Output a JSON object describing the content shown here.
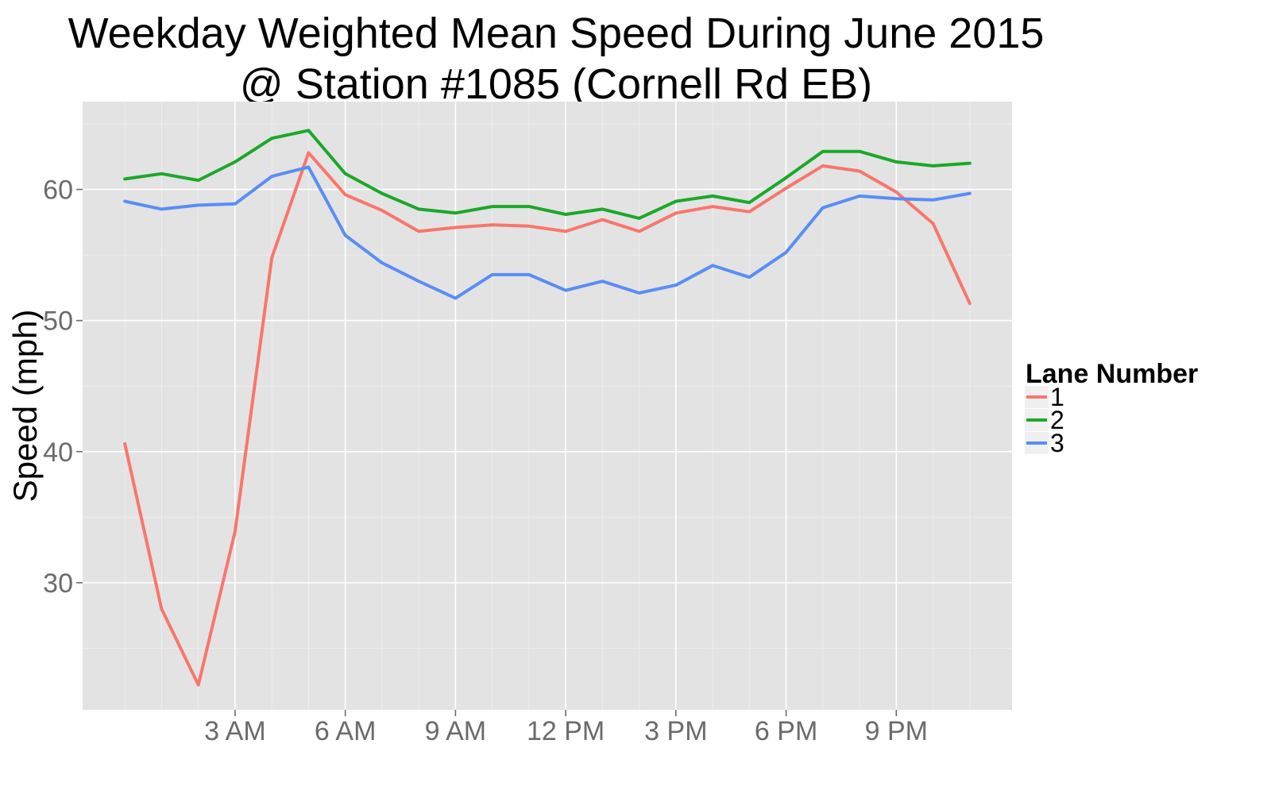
{
  "chart_data": {
    "type": "line",
    "title_lines": [
      "Weekday Weighted Mean Speed During June 2015",
      "@ Station #1085 (Cornell Rd EB)"
    ],
    "xlabel": "",
    "ylabel": "Speed (mph)",
    "x": [
      0,
      1,
      2,
      3,
      4,
      5,
      6,
      7,
      8,
      9,
      10,
      11,
      12,
      13,
      14,
      15,
      16,
      17,
      18,
      19,
      20,
      21,
      22,
      23
    ],
    "xlim": [
      -1.15,
      24.15
    ],
    "ylim": [
      20.3,
      66.7
    ],
    "x_ticks": [
      {
        "value": 3,
        "label": "3 AM"
      },
      {
        "value": 6,
        "label": "6 AM"
      },
      {
        "value": 9,
        "label": "9 AM"
      },
      {
        "value": 12,
        "label": "12 PM"
      },
      {
        "value": 15,
        "label": "3 PM"
      },
      {
        "value": 18,
        "label": "6 PM"
      },
      {
        "value": 21,
        "label": "9 PM"
      }
    ],
    "y_ticks": [
      {
        "value": 30,
        "label": "30"
      },
      {
        "value": 40,
        "label": "40"
      },
      {
        "value": 50,
        "label": "50"
      },
      {
        "value": 60,
        "label": "60"
      }
    ],
    "grid": true,
    "legend": {
      "title": "Lane Number",
      "placement": "right"
    },
    "series": [
      {
        "name": "1",
        "color": "#f8766d",
        "values": [
          40.6,
          28.0,
          22.2,
          33.9,
          54.8,
          62.8,
          59.6,
          58.4,
          56.8,
          57.1,
          57.3,
          57.2,
          56.8,
          57.7,
          56.8,
          58.2,
          58.7,
          58.3,
          60.1,
          61.8,
          61.4,
          59.8,
          57.4,
          51.3
        ]
      },
      {
        "name": "2",
        "color": "#1ba82a",
        "values": [
          60.8,
          61.2,
          60.7,
          62.1,
          63.9,
          64.5,
          61.2,
          59.7,
          58.5,
          58.2,
          58.7,
          58.7,
          58.1,
          58.5,
          57.8,
          59.1,
          59.5,
          59.0,
          60.9,
          62.9,
          62.9,
          62.1,
          61.8,
          62.0
        ]
      },
      {
        "name": "3",
        "color": "#5a8df5",
        "values": [
          59.1,
          58.5,
          58.8,
          58.9,
          61.0,
          61.7,
          56.5,
          54.4,
          53.0,
          51.7,
          53.5,
          53.5,
          52.3,
          53.0,
          52.1,
          52.7,
          54.2,
          53.3,
          55.2,
          58.6,
          59.5,
          59.3,
          59.2,
          59.7
        ]
      }
    ]
  }
}
